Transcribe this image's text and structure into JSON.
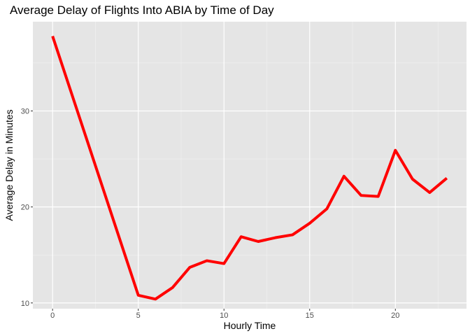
{
  "chart_data": {
    "type": "line",
    "title": "Average Delay of Flights Into ABIA by Time of Day",
    "xlabel": "Hourly Time",
    "ylabel": "Average Delay in Minutes",
    "xlim": [
      -1.15,
      24.15
    ],
    "ylim": [
      9.4,
      39.3
    ],
    "x_ticks": [
      0,
      5,
      10,
      15,
      20
    ],
    "x_minor_ticks": [
      2.5,
      7.5,
      12.5,
      17.5,
      22.5
    ],
    "y_ticks": [
      10,
      20,
      30
    ],
    "y_minor_ticks": [
      15,
      25,
      35
    ],
    "grid": true,
    "panel_background": "#e5e5e5",
    "series": [
      {
        "color": "#ff0000",
        "x": [
          0,
          5,
          6,
          7,
          8,
          9,
          10,
          11,
          12,
          13,
          14,
          15,
          16,
          17,
          18,
          19,
          20,
          21,
          22,
          23
        ],
        "values": [
          37.8,
          10.8,
          10.4,
          11.6,
          13.7,
          14.4,
          14.1,
          16.9,
          16.4,
          16.8,
          17.1,
          18.3,
          19.8,
          23.2,
          21.2,
          21.1,
          25.9,
          22.9,
          21.5,
          23.0
        ]
      }
    ]
  }
}
